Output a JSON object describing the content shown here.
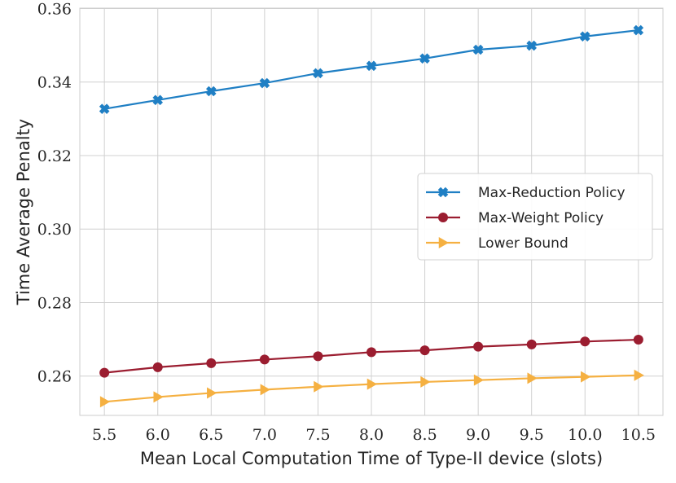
{
  "chart_data": {
    "type": "line",
    "title": "",
    "xlabel": "Mean Local Computation Time of Type-II device (slots)",
    "ylabel": "Time Average Penalty",
    "x": [
      5.5,
      6.0,
      6.5,
      7.0,
      7.5,
      8.0,
      8.5,
      9.0,
      9.5,
      10.0,
      10.5
    ],
    "x_tick_labels": [
      "5.5",
      "6.0",
      "6.5",
      "7.0",
      "7.5",
      "8.0",
      "8.5",
      "9.0",
      "9.5",
      "10.0",
      "10.5"
    ],
    "y_ticks": [
      0.26,
      0.28,
      0.3,
      0.32,
      0.34,
      0.36
    ],
    "y_tick_labels": [
      "0.26",
      "0.28",
      "0.30",
      "0.32",
      "0.34",
      "0.36"
    ],
    "xlim": [
      5.27,
      10.73
    ],
    "ylim": [
      0.2493,
      0.3601
    ],
    "grid": true,
    "legend_position": "center-right",
    "series": [
      {
        "name": "Max-Reduction Policy",
        "color": "#1f7fc4",
        "marker": "x-filled",
        "values": [
          0.3327,
          0.3351,
          0.3375,
          0.3397,
          0.3424,
          0.3444,
          0.3464,
          0.3488,
          0.3499,
          0.3524,
          0.3541
        ]
      },
      {
        "name": "Max-Weight Policy",
        "color": "#9b1d30",
        "marker": "circle",
        "values": [
          0.2609,
          0.2624,
          0.2635,
          0.2645,
          0.2654,
          0.2665,
          0.267,
          0.268,
          0.2686,
          0.2694,
          0.2699
        ]
      },
      {
        "name": "Lower Bound",
        "color": "#f5b041",
        "marker": "triangle-right",
        "values": [
          0.253,
          0.2543,
          0.2554,
          0.2563,
          0.2571,
          0.2578,
          0.2584,
          0.2589,
          0.2594,
          0.2598,
          0.2602
        ]
      }
    ]
  }
}
